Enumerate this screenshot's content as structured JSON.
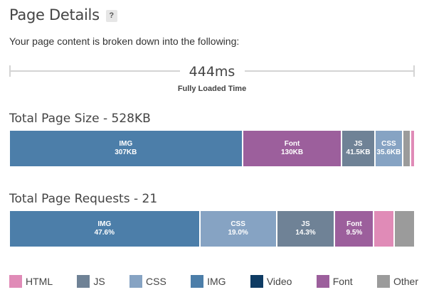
{
  "header": {
    "title": "Page Details",
    "help_label": "?"
  },
  "subtitle": "Your page content is broken down into the following:",
  "timing": {
    "value": "444ms",
    "label": "Fully Loaded Time"
  },
  "colors": {
    "HTML": "#e08bb7",
    "JS": "#6f8296",
    "CSS": "#86a3c3",
    "IMG": "#4c7ea9",
    "Video": "#0e3b63",
    "Font": "#9c5f9c",
    "Other": "#9b9b9b"
  },
  "size_section": {
    "title": "Total Page Size - 528KB",
    "segments": [
      {
        "type": "IMG",
        "label": "IMG",
        "value_label": "307KB",
        "kb": 307
      },
      {
        "type": "Font",
        "label": "Font",
        "value_label": "130KB",
        "kb": 130
      },
      {
        "type": "JS",
        "label": "JS",
        "value_label": "41.5KB",
        "kb": 41.5
      },
      {
        "type": "CSS",
        "label": "CSS",
        "value_label": "35.6KB",
        "kb": 35.6
      },
      {
        "type": "Other",
        "label": "",
        "value_label": "",
        "kb": 8.5
      },
      {
        "type": "HTML",
        "label": "",
        "value_label": "",
        "kb": 3.5
      }
    ]
  },
  "requests_section": {
    "title": "Total Page Requests - 21",
    "segments": [
      {
        "type": "IMG",
        "label": "IMG",
        "value_label": "47.6%",
        "percent": 47.6
      },
      {
        "type": "CSS",
        "label": "CSS",
        "value_label": "19.0%",
        "percent": 19.0
      },
      {
        "type": "JS",
        "label": "JS",
        "value_label": "14.3%",
        "percent": 14.3
      },
      {
        "type": "Font",
        "label": "Font",
        "value_label": "9.5%",
        "percent": 9.5
      },
      {
        "type": "HTML",
        "label": "",
        "value_label": "",
        "percent": 4.8
      },
      {
        "type": "Other",
        "label": "",
        "value_label": "",
        "percent": 4.8
      }
    ]
  },
  "legend": {
    "items": [
      {
        "type": "HTML",
        "label": "HTML"
      },
      {
        "type": "JS",
        "label": "JS"
      },
      {
        "type": "CSS",
        "label": "CSS"
      },
      {
        "type": "IMG",
        "label": "IMG"
      },
      {
        "type": "Video",
        "label": "Video"
      },
      {
        "type": "Font",
        "label": "Font"
      },
      {
        "type": "Other",
        "label": "Other"
      }
    ]
  }
}
